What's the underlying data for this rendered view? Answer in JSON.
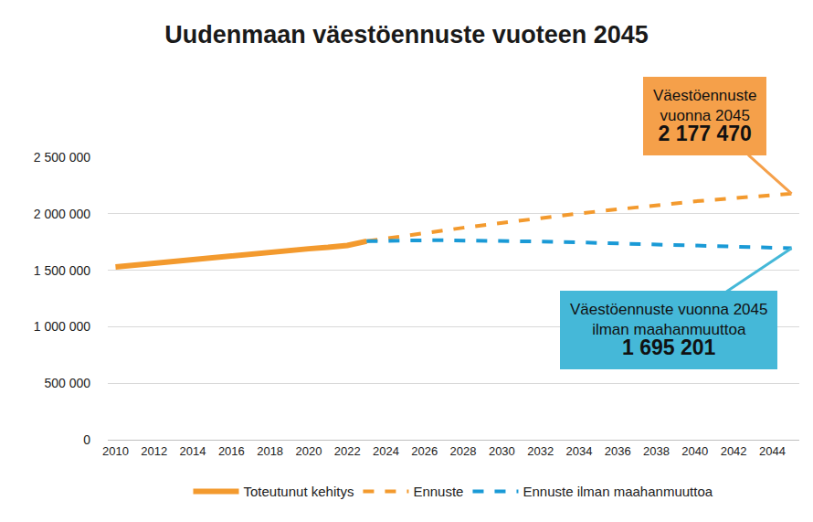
{
  "chart_data": {
    "type": "line",
    "title": "Uudenmaan väestöennuste vuoteen 2045",
    "x": [
      2010,
      2011,
      2012,
      2013,
      2014,
      2015,
      2016,
      2017,
      2018,
      2019,
      2020,
      2021,
      2022,
      2023,
      2024,
      2025,
      2026,
      2027,
      2028,
      2029,
      2030,
      2031,
      2032,
      2033,
      2034,
      2035,
      2036,
      2037,
      2038,
      2039,
      2040,
      2041,
      2042,
      2043,
      2044,
      2045
    ],
    "series": [
      {
        "name": "Toteutunut kehitys",
        "color": "#f39a2e",
        "line_style": "solid",
        "values": [
          1530000,
          1547000,
          1565000,
          1582000,
          1600000,
          1616000,
          1630000,
          1648000,
          1664000,
          1678000,
          1690000,
          1703000,
          1720000,
          1757000,
          null,
          null,
          null,
          null,
          null,
          null,
          null,
          null,
          null,
          null,
          null,
          null,
          null,
          null,
          null,
          null,
          null,
          null,
          null,
          null,
          null,
          null
        ]
      },
      {
        "name": "Ennuste",
        "color": "#f39a2e",
        "line_style": "dash",
        "values": [
          null,
          null,
          null,
          null,
          null,
          null,
          null,
          null,
          null,
          null,
          null,
          null,
          null,
          1757000,
          1782000,
          1806000,
          1830000,
          1853000,
          1876000,
          1898000,
          1920000,
          1941000,
          1962000,
          1982000,
          2002000,
          2021000,
          2040000,
          2058000,
          2076000,
          2093000,
          2110000,
          2124000,
          2138000,
          2152000,
          2165000,
          2177470
        ]
      },
      {
        "name": "Ennuste ilman maahanmuuttoa",
        "color": "#1a9ad6",
        "line_style": "dash",
        "values": [
          null,
          null,
          null,
          null,
          null,
          null,
          null,
          null,
          null,
          null,
          null,
          null,
          null,
          1757000,
          1762000,
          1764000,
          1765000,
          1765000,
          1764000,
          1762000,
          1760000,
          1757000,
          1754000,
          1751000,
          1747000,
          1743000,
          1739000,
          1735000,
          1731000,
          1726000,
          1721000,
          1716000,
          1711000,
          1705000,
          1700000,
          1695201
        ]
      }
    ],
    "xlim": [
      2009.6,
      2045.4
    ],
    "xticks": [
      2010,
      2012,
      2014,
      2016,
      2018,
      2020,
      2022,
      2024,
      2026,
      2028,
      2030,
      2032,
      2034,
      2036,
      2038,
      2040,
      2042,
      2044
    ],
    "ylim": [
      0,
      2500000
    ],
    "yticks": [
      0,
      {
        "value": 500000,
        "label": "500 000"
      },
      {
        "value": 1000000,
        "label": "1 000 000"
      },
      {
        "value": 1500000,
        "label": "1 500 000"
      },
      {
        "value": 2000000,
        "label": "2 000 000"
      },
      {
        "value": 2500000,
        "label": "2 500 000"
      }
    ],
    "grid": true,
    "legend": "bottom",
    "annotations": [
      {
        "lines": [
          "Väestöennuste",
          "vuonna 2045"
        ],
        "value_label": "2 177 470",
        "x": 2045,
        "y": 2177470,
        "color": "#f5a04a"
      },
      {
        "lines": [
          "Väestöennuste vuonna 2045",
          "ilman maahanmuuttoa"
        ],
        "value_label": "1 695 201",
        "x": 2045,
        "y": 1695201,
        "color": "#45b8d8"
      }
    ]
  }
}
